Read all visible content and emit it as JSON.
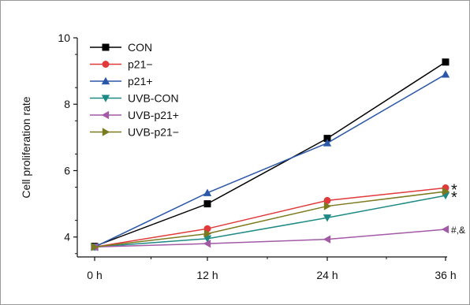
{
  "chart_data": {
    "type": "line",
    "title": "",
    "xlabel": "",
    "ylabel": "Cell proliferation rate",
    "categories": [
      "0 h",
      "12 h",
      "24 h",
      "36 h"
    ],
    "yticks": [
      "4",
      "6",
      "8",
      "10"
    ],
    "ylim": [
      3.4,
      10
    ],
    "grid": false,
    "legend_position": "top-left",
    "series": [
      {
        "name": "CON",
        "values": [
          3.72,
          5.0,
          6.97,
          9.27
        ],
        "color": "#000000",
        "marker": "square"
      },
      {
        "name": "p21−",
        "values": [
          3.7,
          4.25,
          5.1,
          5.48
        ],
        "color": "#e03a3a",
        "marker": "circle"
      },
      {
        "name": "p21+",
        "values": [
          3.7,
          5.33,
          6.83,
          8.9
        ],
        "color": "#2b57a8",
        "marker": "triangle-up"
      },
      {
        "name": "UVB-CON",
        "values": [
          3.7,
          3.95,
          4.58,
          5.25
        ],
        "color": "#1f8a84",
        "marker": "triangle-down"
      },
      {
        "name": "UVB-p21+",
        "values": [
          3.7,
          3.8,
          3.93,
          4.23
        ],
        "color": "#a25aa6",
        "marker": "triangle-left"
      },
      {
        "name": "UVB-p21−",
        "values": [
          3.7,
          4.1,
          4.93,
          5.37
        ],
        "color": "#7b7a1e",
        "marker": "triangle-right"
      }
    ],
    "annotations": [
      {
        "text": "*",
        "series": "p21−"
      },
      {
        "text": "*",
        "series": "UVB-CON"
      },
      {
        "text": "#,&",
        "series": "UVB-p21+"
      }
    ]
  }
}
